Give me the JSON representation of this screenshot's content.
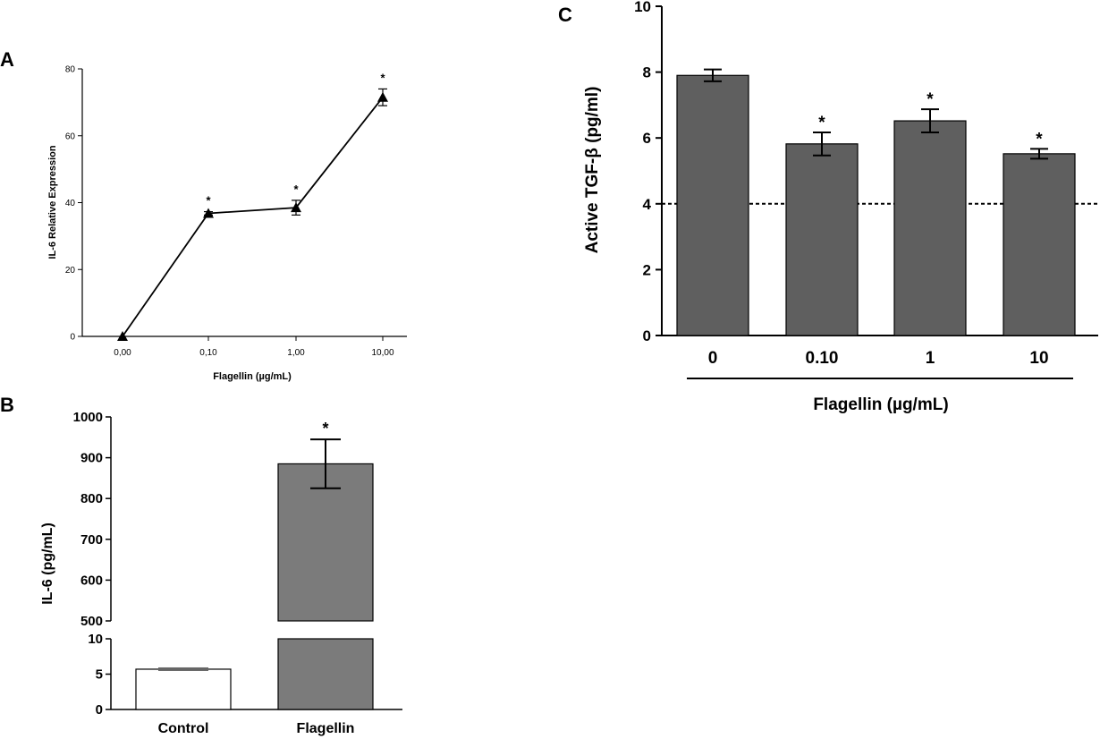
{
  "chart_data": [
    {
      "panel": "A",
      "type": "line",
      "categories": [
        "0,00",
        "0,10",
        "1,00",
        "10,00"
      ],
      "values": [
        0,
        36.8,
        38.5,
        71.5
      ],
      "errors": [
        0,
        0.5,
        2.2,
        2.5
      ],
      "significance": [
        "",
        "*",
        "*",
        "*"
      ],
      "xlabel": "Flagellin (µg/mL)",
      "ylabel": "IL-6 Relative Expression",
      "ylim": [
        0,
        80
      ],
      "yticks": [
        "0",
        "20",
        "40",
        "60",
        "80"
      ],
      "marker": "triangle",
      "color": "#000000"
    },
    {
      "panel": "B",
      "type": "bar",
      "categories": [
        "Control",
        "Flagellin"
      ],
      "values": [
        5.7,
        885
      ],
      "errors": [
        0.15,
        60
      ],
      "significance": [
        "",
        "*"
      ],
      "bar_colors": [
        "#ffffff",
        "#7b7b7b"
      ],
      "xlabel": "",
      "ylabel": "IL-6 (pg/mL)",
      "broken_axis": {
        "upper_range": [
          500,
          1000
        ],
        "upper_ticks": [
          "500",
          "600",
          "700",
          "800",
          "900",
          "1000"
        ],
        "lower_range": [
          0,
          10
        ],
        "lower_ticks": [
          "0",
          "5",
          "10"
        ]
      }
    },
    {
      "panel": "C",
      "type": "bar",
      "categories": [
        "0",
        "0.10",
        "1",
        "10"
      ],
      "values": [
        7.9,
        5.82,
        6.52,
        5.52
      ],
      "errors": [
        0.18,
        0.35,
        0.35,
        0.15
      ],
      "significance": [
        "",
        "*",
        "*",
        "*"
      ],
      "bar_color": "#5f5f5f",
      "reference_line": 4,
      "xlabel": "Flagellin (µg/mL)",
      "ylabel": "Active TGF-β (pg/ml)",
      "ylim": [
        0,
        10
      ],
      "yticks": [
        "0",
        "2",
        "4",
        "6",
        "8",
        "10"
      ]
    }
  ]
}
